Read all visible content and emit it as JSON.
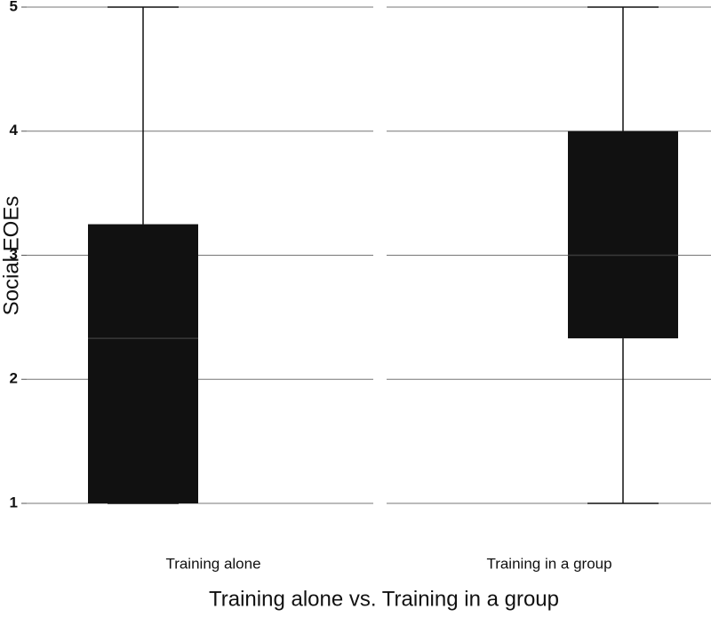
{
  "chart_data": {
    "type": "box",
    "x_label": "Training alone vs. Training in a group",
    "y_label": "Social EOEs",
    "categories": [
      "Training alone",
      "Training in a group"
    ],
    "boxes": [
      {
        "min": 1,
        "q1": 1,
        "median": 2.33,
        "q3": 3.25,
        "max": 5
      },
      {
        "min": 1,
        "q1": 2.33,
        "median": 3,
        "q3": 4,
        "max": 5
      }
    ],
    "color": "#111111",
    "ylim": [
      1,
      5
    ],
    "yticks": [
      1,
      2,
      3,
      4,
      5
    ],
    "grid": true
  }
}
